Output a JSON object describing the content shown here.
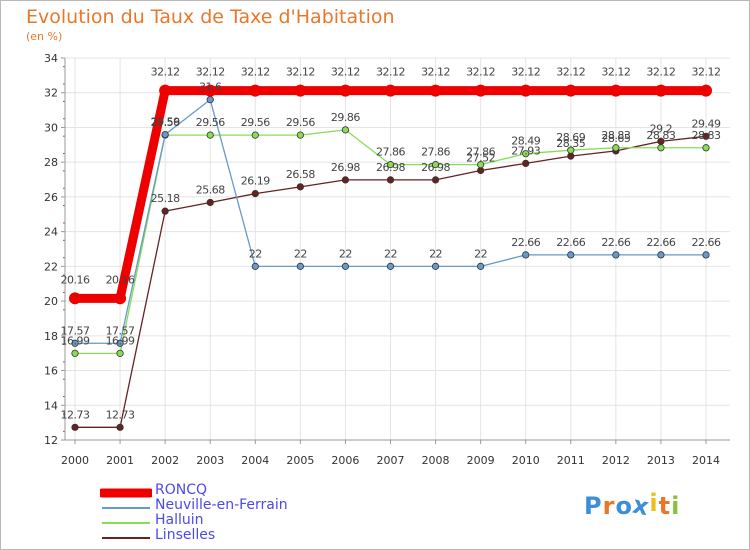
{
  "chart_data": {
    "type": "line",
    "title": "Evolution du Taux de Taxe d'Habitation",
    "ylabel": "(en %)",
    "x": [
      "2000",
      "2001",
      "2002",
      "2003",
      "2004",
      "2005",
      "2006",
      "2007",
      "2008",
      "2009",
      "2010",
      "2011",
      "2012",
      "2013",
      "2014"
    ],
    "yticks": [
      "12",
      "14",
      "16",
      "18",
      "20",
      "22",
      "24",
      "26",
      "28",
      "30",
      "32",
      "34"
    ],
    "ylim": [
      12,
      34
    ],
    "grid": true,
    "legend_position": "bottom-left",
    "series": [
      {
        "name": "RONCQ",
        "color": "#ee0000",
        "values": [
          20.16,
          20.16,
          32.12,
          32.12,
          32.12,
          32.12,
          32.12,
          32.12,
          32.12,
          32.12,
          32.12,
          32.12,
          32.12,
          32.12,
          32.12
        ],
        "labels": [
          "20.16",
          "20.16",
          "32.12",
          "32.12",
          "32.12",
          "32.12",
          "32.12",
          "32.12",
          "32.12",
          "32.12",
          "32.12",
          "32.12",
          "32.12",
          "32.12",
          "32.12"
        ]
      },
      {
        "name": "Neuville-en-Ferrain",
        "color": "#6699cc",
        "values": [
          17.57,
          17.57,
          29.59,
          31.6,
          22,
          22,
          22,
          22,
          22,
          22,
          22.66,
          22.66,
          22.66,
          22.66,
          22.66
        ],
        "labels": [
          "17.57",
          "17.57",
          "29.59",
          "31.6",
          "22",
          "22",
          "22",
          "22",
          "22",
          "22",
          "22.66",
          "22.66",
          "22.66",
          "22.66",
          "22.66"
        ]
      },
      {
        "name": "Halluin",
        "color": "#88dd55",
        "values": [
          16.99,
          16.99,
          29.56,
          29.56,
          29.56,
          29.56,
          29.86,
          27.86,
          27.86,
          27.86,
          28.49,
          28.69,
          28.83,
          28.83,
          28.83
        ],
        "labels": [
          "16.99",
          "16.99",
          "29.56",
          "29.56",
          "29.56",
          "29.56",
          "29.86",
          "27.86",
          "27.86",
          "27.86",
          "28.49",
          "28.69",
          "28.83",
          "28.83",
          "28.83"
        ]
      },
      {
        "name": "Linselles",
        "color": "#662222",
        "values": [
          12.73,
          12.73,
          25.18,
          25.68,
          26.19,
          26.58,
          26.98,
          26.98,
          26.98,
          27.52,
          27.93,
          28.35,
          28.65,
          29.2,
          29.49
        ],
        "labels": [
          "12.73",
          "12.73",
          "25.18",
          "25.68",
          "26.19",
          "26.58",
          "26.98",
          "26.98",
          "26.98",
          "27.52",
          "27.93",
          "28.35",
          "28.65",
          "29.2",
          "29.49"
        ]
      }
    ]
  },
  "brand": {
    "text": "Proxiti",
    "letters": [
      "P",
      "r",
      "o",
      "x",
      "i",
      "t",
      "i"
    ],
    "colors": [
      "#3b8ed8",
      "#e8772a",
      "#3b8ed8",
      "#3b8ed8",
      "#e8c020",
      "#e8772a",
      "#88c040"
    ]
  }
}
